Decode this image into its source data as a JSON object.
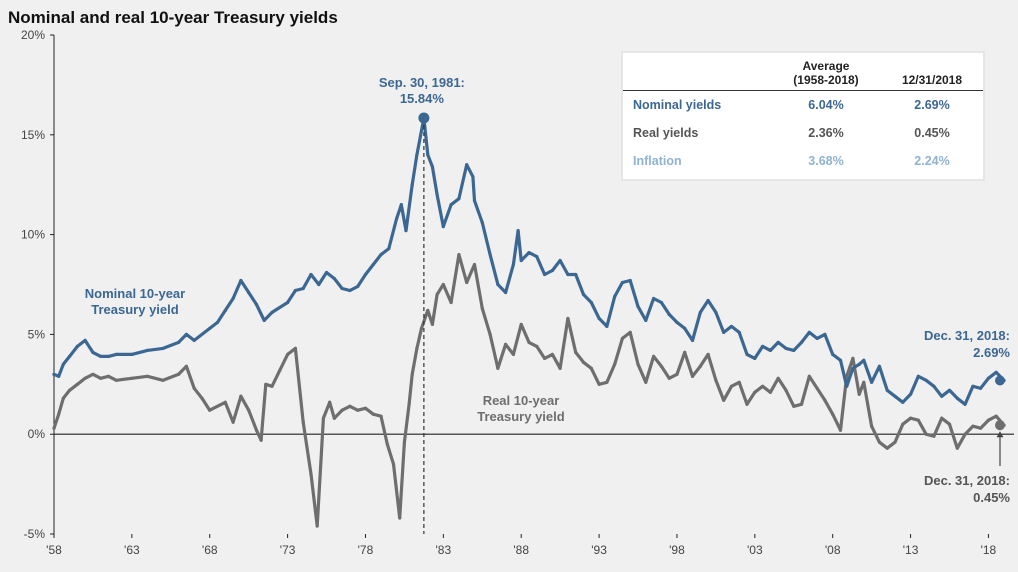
{
  "chart_data": {
    "type": "line",
    "title": "Nominal and real 10-year Treasury yields",
    "xlabel": "",
    "ylabel": "",
    "ylim": [
      -5,
      20
    ],
    "xlim": [
      1958,
      2019
    ],
    "y_tick_labels": [
      "-5%",
      "0%",
      "5%",
      "10%",
      "15%",
      "20%"
    ],
    "y_tick_values": [
      -5,
      0,
      5,
      10,
      15,
      20
    ],
    "x_tick_labels": [
      "'58",
      "'63",
      "'68",
      "'73",
      "'78",
      "'83",
      "'88",
      "'93",
      "'98",
      "'03",
      "'08",
      "'13",
      "'18"
    ],
    "x_tick_values": [
      1958,
      1963,
      1968,
      1973,
      1978,
      1983,
      1988,
      1993,
      1998,
      2003,
      2008,
      2013,
      2018
    ],
    "series": [
      {
        "name": "Nominal 10-year Treasury yield",
        "color": "#3b6792",
        "label_lines": [
          "Nominal 10-year",
          "Treasury yield"
        ],
        "x": [
          1958.0,
          1958.3,
          1958.6,
          1959.0,
          1959.5,
          1960.0,
          1960.5,
          1961.0,
          1961.5,
          1962.0,
          1963.0,
          1964.0,
          1965.0,
          1966.0,
          1966.5,
          1967.0,
          1968.0,
          1968.5,
          1969.0,
          1969.5,
          1970.0,
          1970.5,
          1971.0,
          1971.5,
          1972.0,
          1973.0,
          1973.5,
          1974.0,
          1974.5,
          1975.0,
          1975.5,
          1976.0,
          1976.5,
          1977.0,
          1977.5,
          1978.0,
          1978.5,
          1979.0,
          1979.5,
          1980.0,
          1980.3,
          1980.6,
          1981.0,
          1981.3,
          1981.75,
          1982.0,
          1982.3,
          1982.6,
          1983.0,
          1983.5,
          1984.0,
          1984.5,
          1984.9,
          1985.0,
          1985.5,
          1986.0,
          1986.5,
          1987.0,
          1987.5,
          1987.8,
          1988.0,
          1988.5,
          1989.0,
          1989.5,
          1990.0,
          1990.5,
          1991.0,
          1991.5,
          1992.0,
          1992.5,
          1993.0,
          1993.5,
          1994.0,
          1994.5,
          1995.0,
          1995.5,
          1996.0,
          1996.5,
          1997.0,
          1997.5,
          1998.0,
          1998.5,
          1999.0,
          1999.5,
          2000.0,
          2000.5,
          2001.0,
          2001.5,
          2002.0,
          2002.5,
          2003.0,
          2003.5,
          2004.0,
          2004.5,
          2005.0,
          2005.5,
          2006.0,
          2006.5,
          2007.0,
          2007.5,
          2008.0,
          2008.5,
          2008.9,
          2009.3,
          2009.7,
          2010.0,
          2010.5,
          2011.0,
          2011.5,
          2012.0,
          2012.5,
          2013.0,
          2013.5,
          2014.0,
          2014.5,
          2015.0,
          2015.5,
          2016.0,
          2016.5,
          2017.0,
          2017.5,
          2018.0,
          2018.5,
          2019.0
        ],
        "values": [
          3.0,
          2.9,
          3.5,
          3.9,
          4.4,
          4.7,
          4.1,
          3.9,
          3.9,
          4.0,
          4.0,
          4.2,
          4.3,
          4.6,
          5.0,
          4.7,
          5.3,
          5.6,
          6.2,
          6.8,
          7.7,
          7.1,
          6.5,
          5.7,
          6.1,
          6.6,
          7.2,
          7.3,
          8.0,
          7.5,
          8.1,
          7.8,
          7.3,
          7.2,
          7.4,
          8.0,
          8.5,
          9.0,
          9.3,
          10.8,
          11.5,
          10.2,
          12.5,
          14.0,
          15.84,
          14.0,
          13.4,
          12.0,
          10.4,
          11.5,
          11.8,
          13.5,
          12.9,
          11.7,
          10.6,
          9.0,
          7.5,
          7.1,
          8.5,
          10.2,
          8.7,
          9.1,
          8.9,
          8.0,
          8.2,
          8.7,
          8.0,
          8.0,
          7.0,
          6.6,
          5.8,
          5.4,
          6.9,
          7.6,
          7.7,
          6.4,
          5.7,
          6.8,
          6.6,
          6.0,
          5.6,
          5.3,
          4.7,
          6.1,
          6.7,
          6.1,
          5.1,
          5.4,
          5.1,
          4.0,
          3.8,
          4.4,
          4.2,
          4.6,
          4.3,
          4.2,
          4.6,
          5.1,
          4.8,
          5.0,
          4.0,
          3.7,
          2.4,
          3.3,
          3.5,
          3.7,
          2.6,
          3.4,
          2.2,
          1.9,
          1.6,
          2.0,
          2.9,
          2.7,
          2.4,
          1.9,
          2.2,
          1.8,
          1.5,
          2.4,
          2.3,
          2.8,
          3.1,
          2.69
        ],
        "end_label_lines": [
          "Dec. 31, 2018:",
          "2.69%"
        ],
        "peak_label_lines": [
          "Sep. 30, 1981:",
          "15.84%"
        ],
        "peak": {
          "x": 1981.75,
          "y": 15.84
        }
      },
      {
        "name": "Real 10-year Treasury yield",
        "color": "#6e6e6e",
        "label_lines": [
          "Real 10-year",
          "Treasury yield"
        ],
        "x": [
          1958.0,
          1958.3,
          1958.6,
          1959.0,
          1959.5,
          1960.0,
          1960.5,
          1961.0,
          1961.5,
          1962.0,
          1963.0,
          1964.0,
          1965.0,
          1966.0,
          1966.5,
          1967.0,
          1967.5,
          1968.0,
          1969.0,
          1969.5,
          1970.0,
          1970.5,
          1971.0,
          1971.3,
          1971.6,
          1972.0,
          1972.5,
          1973.0,
          1973.5,
          1974.0,
          1974.5,
          1974.9,
          1975.3,
          1975.7,
          1976.0,
          1976.5,
          1977.0,
          1977.5,
          1978.0,
          1978.5,
          1979.0,
          1979.4,
          1979.8,
          1980.2,
          1980.5,
          1980.8,
          1981.0,
          1981.3,
          1981.6,
          1982.0,
          1982.3,
          1982.6,
          1983.0,
          1983.5,
          1984.0,
          1984.5,
          1985.0,
          1985.5,
          1986.0,
          1986.5,
          1987.0,
          1987.5,
          1988.0,
          1988.5,
          1989.0,
          1989.5,
          1990.0,
          1990.5,
          1991.0,
          1991.5,
          1992.0,
          1992.5,
          1993.0,
          1993.5,
          1994.0,
          1994.5,
          1995.0,
          1995.5,
          1996.0,
          1996.5,
          1997.0,
          1997.5,
          1998.0,
          1998.5,
          1999.0,
          1999.5,
          2000.0,
          2000.5,
          2001.0,
          2001.5,
          2002.0,
          2002.5,
          2003.0,
          2003.5,
          2004.0,
          2004.5,
          2005.0,
          2005.5,
          2006.0,
          2006.5,
          2007.0,
          2007.5,
          2008.0,
          2008.5,
          2008.9,
          2009.3,
          2009.7,
          2010.0,
          2010.5,
          2011.0,
          2011.5,
          2012.0,
          2012.5,
          2013.0,
          2013.5,
          2014.0,
          2014.5,
          2015.0,
          2015.5,
          2016.0,
          2016.5,
          2017.0,
          2017.5,
          2018.0,
          2018.5,
          2019.0
        ],
        "values": [
          0.3,
          1.0,
          1.8,
          2.2,
          2.5,
          2.8,
          3.0,
          2.8,
          2.9,
          2.7,
          2.8,
          2.9,
          2.7,
          3.0,
          3.4,
          2.3,
          1.8,
          1.2,
          1.6,
          0.6,
          1.9,
          1.2,
          0.2,
          -0.3,
          2.5,
          2.4,
          3.2,
          4.0,
          4.3,
          0.6,
          -2.0,
          -4.6,
          0.8,
          1.6,
          0.8,
          1.2,
          1.4,
          1.2,
          1.3,
          1.0,
          0.9,
          -0.5,
          -1.5,
          -4.2,
          -0.4,
          1.5,
          3.0,
          4.3,
          5.3,
          6.2,
          5.5,
          7.0,
          7.5,
          6.6,
          9.0,
          7.6,
          8.5,
          6.3,
          5.0,
          3.3,
          4.5,
          4.0,
          5.5,
          4.6,
          4.4,
          3.8,
          4.0,
          3.3,
          5.8,
          4.1,
          3.6,
          3.3,
          2.5,
          2.6,
          3.5,
          4.8,
          5.1,
          3.5,
          2.6,
          3.9,
          3.4,
          2.8,
          3.0,
          4.1,
          2.9,
          3.4,
          4.0,
          2.7,
          1.7,
          2.4,
          2.6,
          1.5,
          2.1,
          2.4,
          2.1,
          2.8,
          2.2,
          1.4,
          1.5,
          2.9,
          2.3,
          1.7,
          1.0,
          0.2,
          2.9,
          3.8,
          2.0,
          2.6,
          0.4,
          -0.4,
          -0.7,
          -0.4,
          0.5,
          0.8,
          0.7,
          0.0,
          -0.1,
          0.8,
          0.5,
          -0.7,
          0.0,
          0.4,
          0.3,
          0.7,
          0.9,
          0.45
        ],
        "end_label_lines": [
          "Dec. 31, 2018:",
          "0.45%"
        ]
      }
    ],
    "reference_line": {
      "x": 1981.75,
      "style": "dashed"
    },
    "table": {
      "columns": [
        {
          "lines": [
            "",
            ""
          ]
        },
        {
          "lines": [
            "Average",
            "(1958-2018)"
          ]
        },
        {
          "lines": [
            "",
            "12/31/2018"
          ]
        }
      ],
      "rows": [
        {
          "label": "Nominal yields",
          "average": "6.04%",
          "current": "2.69%",
          "color": "#3b6792"
        },
        {
          "label": "Real yields",
          "average": "2.36%",
          "current": "0.45%",
          "color": "#555555"
        },
        {
          "label": "Inflation",
          "average": "3.68%",
          "current": "2.24%",
          "color": "#8fb3d1"
        }
      ]
    }
  }
}
